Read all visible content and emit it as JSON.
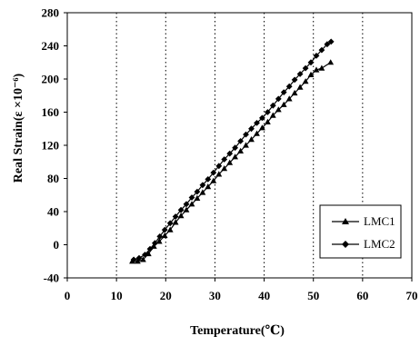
{
  "chart_data": {
    "type": "line",
    "xlabel": "Temperature(℃)",
    "ylabel": "Real Strain(ε    ×10⁻⁶)",
    "xlim": [
      0,
      70
    ],
    "ylim": [
      -40,
      280
    ],
    "xticks": [
      0,
      10,
      20,
      30,
      40,
      50,
      60,
      70
    ],
    "yticks": [
      -40,
      0,
      40,
      80,
      120,
      160,
      200,
      240,
      280
    ],
    "vertical_grid": {
      "style": "dotted",
      "at": [
        10,
        20,
        30,
        40,
        50,
        60
      ]
    },
    "legend_position": "bottom-right",
    "series": [
      {
        "name": "LMC1",
        "marker": "triangle",
        "x": [
          13.2,
          14.3,
          15.4,
          16.5,
          17.6,
          18.7,
          19.8,
          20.9,
          22,
          23.1,
          24.2,
          25.3,
          26.4,
          27.5,
          28.6,
          29.7,
          30.8,
          31.9,
          33,
          34.1,
          35.2,
          36.3,
          37.4,
          38.5,
          39.6,
          40.7,
          41.8,
          42.9,
          44,
          45.1,
          46.2,
          47.3,
          48.4,
          49.5,
          50.6,
          51.7,
          53.5
        ],
        "y": [
          -20,
          -20,
          -18,
          -11,
          -2,
          4,
          11,
          18,
          27,
          35,
          42,
          49,
          56,
          63,
          70,
          77,
          85,
          92,
          99,
          106,
          113,
          120,
          127,
          134,
          141,
          148,
          156,
          163,
          169,
          176,
          183,
          190,
          197,
          205,
          211,
          213,
          220
        ]
      },
      {
        "name": "LMC2",
        "marker": "diamond",
        "x": [
          13.5,
          14.6,
          15.8,
          16.8,
          17.8,
          18.8,
          19.8,
          20.9,
          22,
          23.1,
          24.2,
          25.3,
          26.4,
          27.5,
          28.6,
          29.7,
          30.8,
          31.9,
          33,
          34.1,
          35.2,
          36.3,
          37.4,
          38.5,
          39.6,
          40.7,
          41.8,
          42.9,
          44,
          45.1,
          46.2,
          47.3,
          48.4,
          49.5,
          50.6,
          51.7,
          52.8,
          53.6
        ],
        "y": [
          -18,
          -16,
          -12,
          -5,
          2,
          10,
          18,
          26,
          34,
          42,
          49,
          57,
          64,
          72,
          79,
          87,
          95,
          103,
          110,
          117,
          125,
          133,
          140,
          147,
          153,
          160,
          168,
          176,
          184,
          191,
          199,
          206,
          213,
          220,
          228,
          235,
          242,
          245
        ]
      }
    ]
  }
}
